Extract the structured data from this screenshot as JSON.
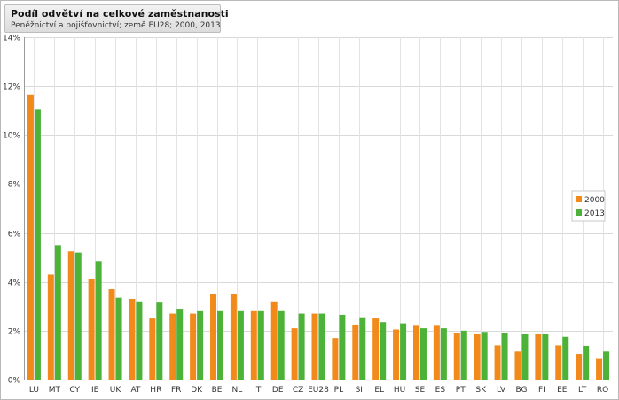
{
  "chart_data": {
    "type": "bar",
    "title": "Podíl odvětví na celkové zaměstnanosti",
    "subtitle": "Peněžnictví a pojišťovnictví; země EU28; 2000, 2013",
    "xlabel": "",
    "ylabel": "",
    "ylim": [
      0,
      14
    ],
    "yticks": [
      "0%",
      "2%",
      "4%",
      "6%",
      "8%",
      "10%",
      "12%",
      "14%"
    ],
    "ytick_values": [
      0,
      2,
      4,
      6,
      8,
      10,
      12,
      14
    ],
    "grid": true,
    "legend_position": "right",
    "categories": [
      "LU",
      "MT",
      "CY",
      "IE",
      "UK",
      "AT",
      "HR",
      "FR",
      "DK",
      "BE",
      "NL",
      "IT",
      "DE",
      "CZ",
      "EU28",
      "PL",
      "SI",
      "EL",
      "HU",
      "SE",
      "ES",
      "PT",
      "SK",
      "LV",
      "BG",
      "FI",
      "EE",
      "LT",
      "RO"
    ],
    "series": [
      {
        "name": "2000",
        "color": "#f28a1b",
        "values": [
          11.65,
          4.3,
          5.25,
          4.1,
          3.7,
          3.3,
          2.5,
          2.7,
          2.7,
          3.5,
          3.5,
          2.8,
          3.2,
          2.1,
          2.7,
          1.7,
          2.25,
          2.5,
          2.05,
          2.2,
          2.2,
          1.9,
          1.85,
          1.4,
          1.15,
          1.85,
          1.4,
          1.05,
          0.85
        ]
      },
      {
        "name": "2013",
        "color": "#4db338",
        "values": [
          11.05,
          5.5,
          5.2,
          4.85,
          3.35,
          3.2,
          3.15,
          2.9,
          2.8,
          2.8,
          2.8,
          2.8,
          2.8,
          2.7,
          2.7,
          2.65,
          2.55,
          2.35,
          2.3,
          2.1,
          2.1,
          2.0,
          1.95,
          1.9,
          1.85,
          1.85,
          1.75,
          1.38,
          1.15
        ]
      }
    ]
  }
}
